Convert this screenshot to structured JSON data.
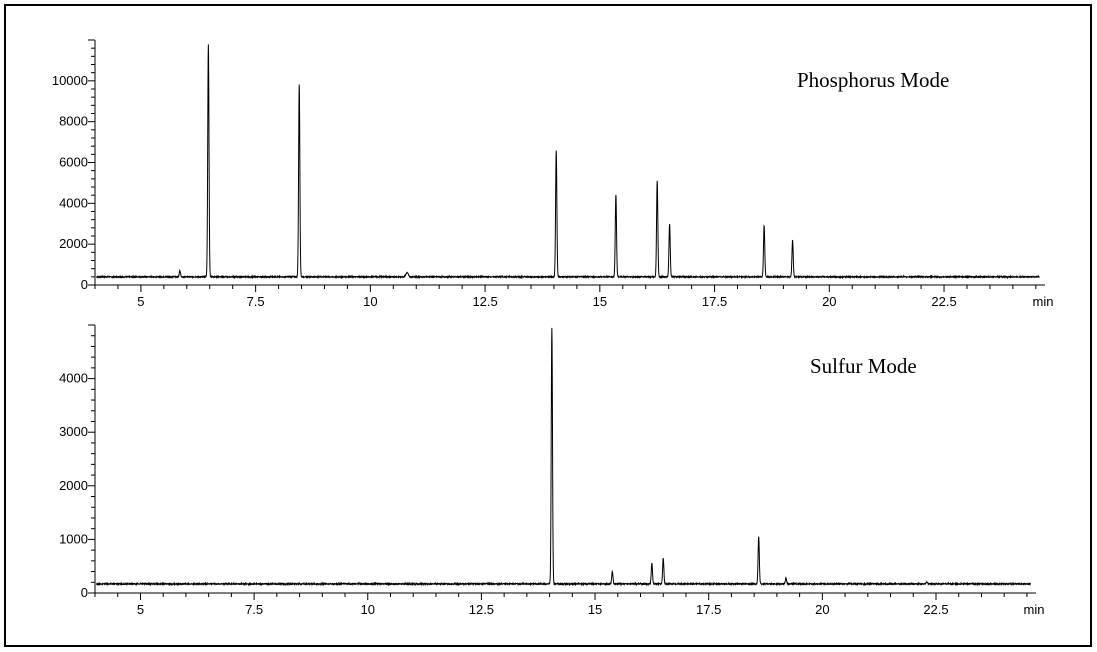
{
  "chart_data": [
    {
      "type": "line",
      "title": "Phosphorus Mode",
      "xlabel": "",
      "ylabel": "",
      "x_unit": "min",
      "xlim": [
        4.0,
        24.7
      ],
      "ylim": [
        0,
        12000
      ],
      "x_ticks": [
        5,
        7.5,
        10,
        12.5,
        15,
        17.5,
        20,
        22.5
      ],
      "x_tick_labels": [
        "5",
        "7.5",
        "10",
        "12.5",
        "15",
        "17.5",
        "20",
        "22.5"
      ],
      "y_ticks": [
        0,
        2000,
        4000,
        6000,
        8000,
        10000
      ],
      "y_tick_labels": [
        "0",
        "2000",
        "4000",
        "6000",
        "8000",
        "10000"
      ],
      "baseline": 400,
      "grid": false,
      "peaks": [
        {
          "rt": 5.85,
          "height": 700,
          "width": 0.03
        },
        {
          "rt": 6.47,
          "height": 11800,
          "width": 0.03
        },
        {
          "rt": 8.45,
          "height": 9800,
          "width": 0.03
        },
        {
          "rt": 10.8,
          "height": 600,
          "width": 0.06
        },
        {
          "rt": 14.05,
          "height": 6600,
          "width": 0.03
        },
        {
          "rt": 15.35,
          "height": 4400,
          "width": 0.03
        },
        {
          "rt": 16.25,
          "height": 5100,
          "width": 0.03
        },
        {
          "rt": 16.52,
          "height": 3000,
          "width": 0.03
        },
        {
          "rt": 18.58,
          "height": 2900,
          "width": 0.03
        },
        {
          "rt": 19.2,
          "height": 2200,
          "width": 0.03
        }
      ]
    },
    {
      "type": "line",
      "title": "Sulfur Mode",
      "xlabel": "",
      "ylabel": "",
      "x_unit": "min",
      "xlim": [
        4.0,
        24.7
      ],
      "ylim": [
        0,
        5000
      ],
      "x_ticks": [
        5,
        7.5,
        10,
        12.5,
        15,
        17.5,
        20,
        22.5
      ],
      "x_tick_labels": [
        "5",
        "7.5",
        "10",
        "12.5",
        "15",
        "17.5",
        "20",
        "22.5"
      ],
      "y_ticks": [
        0,
        1000,
        2000,
        3000,
        4000
      ],
      "y_tick_labels": [
        "0",
        "1000",
        "2000",
        "3000",
        "4000"
      ],
      "baseline": 170,
      "grid": false,
      "peaks": [
        {
          "rt": 14.05,
          "height": 4950,
          "width": 0.03
        },
        {
          "rt": 15.38,
          "height": 400,
          "width": 0.03
        },
        {
          "rt": 16.25,
          "height": 550,
          "width": 0.03
        },
        {
          "rt": 16.5,
          "height": 650,
          "width": 0.03
        },
        {
          "rt": 18.6,
          "height": 1050,
          "width": 0.03
        },
        {
          "rt": 19.2,
          "height": 280,
          "width": 0.03
        },
        {
          "rt": 22.3,
          "height": 210,
          "width": 0.03
        }
      ]
    }
  ]
}
